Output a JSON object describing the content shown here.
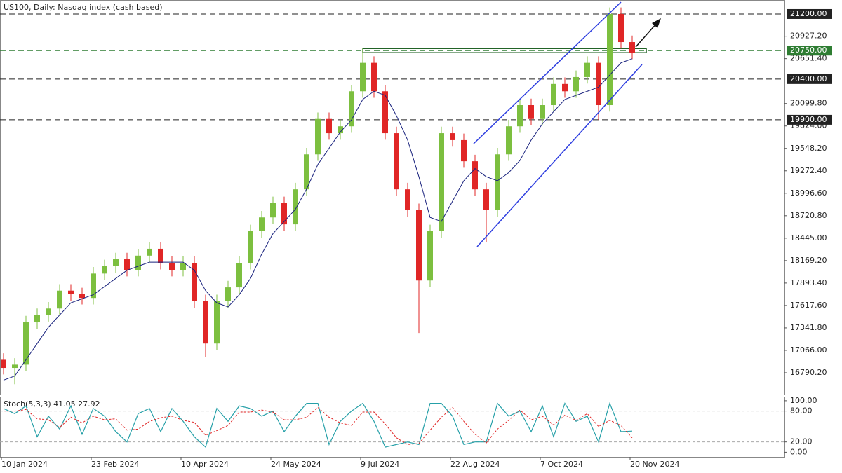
{
  "chart_data": {
    "type": "candlestick",
    "title": "US100, Daily:  Nasdaq index (cash based)",
    "categories": [
      "10 Jan 2024",
      null,
      null,
      null,
      null,
      null,
      null,
      null,
      "23 Feb 2024",
      null,
      null,
      null,
      null,
      null,
      null,
      null,
      "10 Apr 2024",
      null,
      null,
      null,
      null,
      null,
      null,
      null,
      "24 May 2024",
      null,
      null,
      null,
      null,
      null,
      null,
      null,
      "9 Jul 2024",
      null,
      null,
      null,
      null,
      null,
      null,
      null,
      "22 Aug 2024",
      null,
      null,
      null,
      null,
      null,
      null,
      null,
      "7 Oct 2024",
      null,
      null,
      null,
      null,
      null,
      null,
      null,
      "20 Nov 2024"
    ],
    "open": [
      16950,
      16850,
      16890,
      17410,
      17500,
      17580,
      17800,
      17755,
      17710,
      18010,
      18100,
      18185,
      18055,
      18230,
      18315,
      18140,
      18055,
      18140,
      17670,
      17150,
      17670,
      17840,
      18140,
      18530,
      18700,
      18875,
      18615,
      19045,
      19475,
      19910,
      19735,
      19820,
      20250,
      20600,
      20250,
      19735,
      19045,
      18790,
      17925,
      18530,
      19735,
      19650,
      19390,
      19045,
      18790,
      19475,
      19820,
      20080,
      19910,
      20080,
      20340,
      20250,
      20425,
      20600,
      20080,
      21200,
      20855
    ],
    "high": [
      17030,
      16970,
      17490,
      17580,
      17660,
      17880,
      17880,
      17835,
      18090,
      18180,
      18265,
      18265,
      18310,
      18395,
      18395,
      18220,
      18220,
      18220,
      17750,
      17750,
      17920,
      18220,
      18610,
      18780,
      18955,
      18955,
      19125,
      19555,
      19990,
      19990,
      19900,
      20330,
      20780,
      20680,
      20330,
      19815,
      19125,
      18870,
      18610,
      19815,
      19815,
      19730,
      19470,
      19125,
      19555,
      19900,
      20160,
      20160,
      20160,
      20420,
      20420,
      20505,
      20680,
      20680,
      21280,
      21280,
      20935
    ],
    "low": [
      16770,
      16650,
      16810,
      17330,
      17420,
      17500,
      17675,
      17630,
      17630,
      17930,
      18020,
      17975,
      17975,
      18150,
      18060,
      17975,
      17975,
      17590,
      16980,
      17070,
      17590,
      17760,
      18060,
      18450,
      18620,
      18535,
      18535,
      18965,
      19395,
      19655,
      19655,
      19740,
      20170,
      20170,
      19655,
      18965,
      18710,
      17280,
      17845,
      18450,
      19570,
      19310,
      18965,
      18400,
      18710,
      19395,
      19740,
      19830,
      19830,
      20000,
      20170,
      20170,
      20345,
      19900,
      20000,
      20775,
      20645
    ],
    "close": [
      16850,
      16890,
      17410,
      17500,
      17580,
      17800,
      17755,
      17710,
      18010,
      18100,
      18185,
      18055,
      18230,
      18315,
      18140,
      18055,
      18140,
      17670,
      17150,
      17670,
      17840,
      18140,
      18530,
      18700,
      18875,
      18615,
      19045,
      19475,
      19910,
      19735,
      19820,
      20250,
      20600,
      20250,
      19735,
      19045,
      18790,
      17925,
      18530,
      19735,
      19650,
      19390,
      19045,
      18790,
      19475,
      19820,
      20080,
      19910,
      20080,
      20340,
      20250,
      20425,
      20600,
      20080,
      21200,
      20855,
      20725
    ],
    "ma": [
      16700,
      16750,
      16950,
      17150,
      17350,
      17500,
      17650,
      17700,
      17750,
      17850,
      17950,
      18050,
      18100,
      18150,
      18150,
      18150,
      18150,
      18050,
      17800,
      17650,
      17600,
      17750,
      17950,
      18250,
      18500,
      18650,
      18800,
      19050,
      19350,
      19550,
      19750,
      19900,
      20150,
      20250,
      20200,
      19950,
      19650,
      19200,
      18700,
      18650,
      18900,
      19150,
      19300,
      19200,
      19150,
      19250,
      19400,
      19650,
      19850,
      20000,
      20150,
      20200,
      20250,
      20300,
      20450,
      20600,
      20650
    ],
    "up_color": "#7cbf3f",
    "down_color": "#e02626",
    "ma_color": "#1a237e",
    "ylim": [
      16523,
      21372
    ],
    "yticks": [
      {
        "value": 16790.2,
        "label": "16790.20"
      },
      {
        "value": 17066,
        "label": "17066.00"
      },
      {
        "value": 17341.8,
        "label": "17341.80"
      },
      {
        "value": 17617.6,
        "label": "17617.60"
      },
      {
        "value": 17893.4,
        "label": "17893.40"
      },
      {
        "value": 18169.2,
        "label": "18169.20"
      },
      {
        "value": 18445,
        "label": "18445.00"
      },
      {
        "value": 18720.8,
        "label": "18720.80"
      },
      {
        "value": 18996.6,
        "label": "18996.60"
      },
      {
        "value": 19272.4,
        "label": "19272.40"
      },
      {
        "value": 19548.2,
        "label": "19548.20"
      },
      {
        "value": 19824,
        "label": "19824.00"
      },
      {
        "value": 20099.8,
        "label": "20099.80"
      },
      {
        "value": 20651.4,
        "label": "20651.40"
      },
      {
        "value": 20927.2,
        "label": "20927.20"
      }
    ],
    "levels": [
      {
        "value": 21200,
        "label": "21200.00",
        "color": "#222222"
      },
      {
        "value": 20750,
        "label": "20750.00",
        "color": "#2e7d32"
      },
      {
        "value": 20400,
        "label": "20400.00",
        "color": "#222222"
      },
      {
        "value": 19900,
        "label": "19900.00",
        "color": "#222222"
      }
    ],
    "indicator": {
      "label": "Stoch(5,3,3) 41.05 27.92",
      "k_color": "#26a0a8",
      "d_color": "#e02626",
      "ylim": [
        -9,
        108
      ],
      "yticks": [
        {
          "value": 100,
          "label": "100.00"
        },
        {
          "value": 80,
          "label": "80.00"
        },
        {
          "value": 20,
          "label": "20.00"
        },
        {
          "value": 0,
          "label": "0.00"
        }
      ],
      "k": [
        85,
        75,
        90,
        30,
        70,
        45,
        90,
        35,
        85,
        70,
        40,
        20,
        75,
        85,
        40,
        85,
        60,
        30,
        10,
        85,
        60,
        90,
        85,
        70,
        80,
        40,
        70,
        95,
        95,
        15,
        60,
        80,
        95,
        60,
        10,
        15,
        20,
        15,
        95,
        95,
        70,
        15,
        20,
        20,
        95,
        70,
        80,
        40,
        90,
        30,
        95,
        60,
        70,
        20,
        95,
        40,
        41.05
      ],
      "d": [
        80,
        80,
        83,
        65,
        63,
        48,
        68,
        57,
        70,
        63,
        65,
        43,
        45,
        60,
        67,
        70,
        62,
        58,
        33,
        42,
        52,
        78,
        78,
        82,
        78,
        63,
        63,
        68,
        87,
        68,
        57,
        52,
        78,
        78,
        55,
        28,
        15,
        17,
        43,
        68,
        87,
        60,
        35,
        18,
        45,
        62,
        82,
        63,
        70,
        53,
        72,
        62,
        75,
        50,
        62,
        52,
        27.92
      ]
    }
  }
}
